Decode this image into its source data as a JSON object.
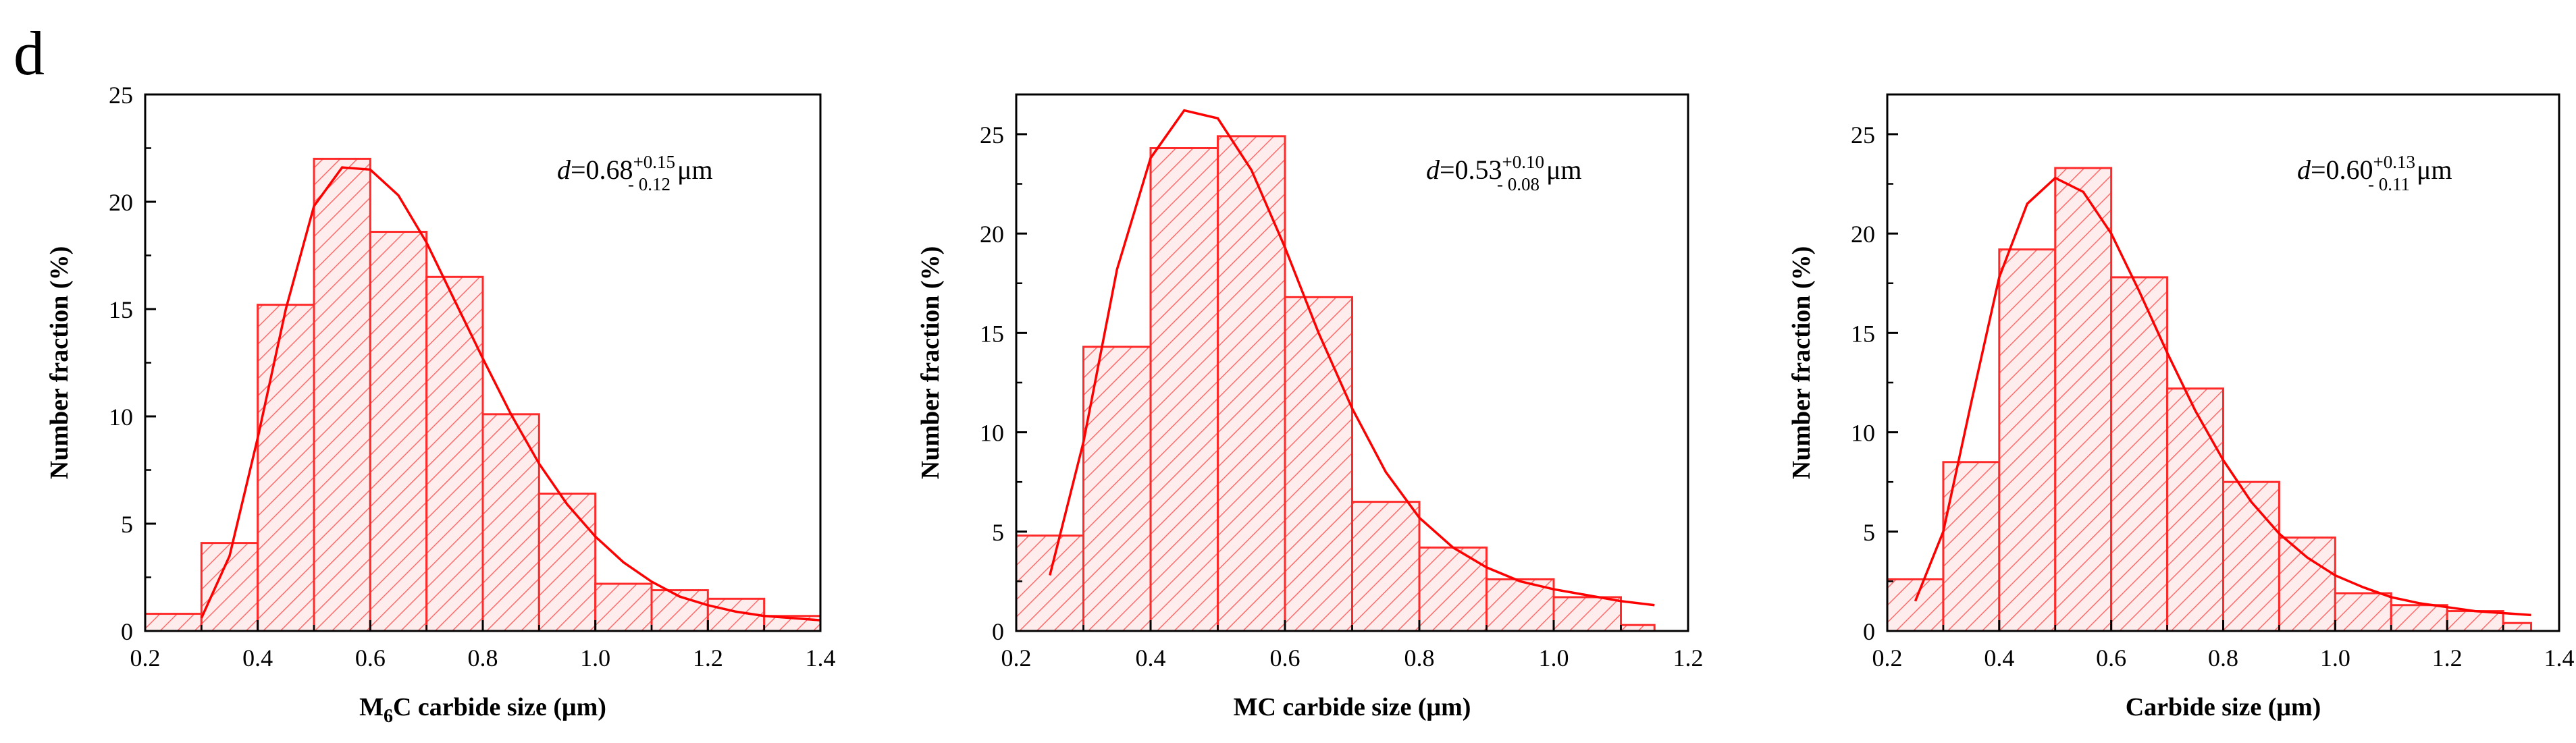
{
  "panel_label": "d",
  "colors": {
    "bar_stroke": "#ff2a2a",
    "fit_line": "#ff0000",
    "hatch": "#ff6b6b",
    "axis": "#000000"
  },
  "chart_data": [
    {
      "type": "bar",
      "title": "",
      "xlabel_main": "M",
      "xlabel_sub": "6",
      "xlabel_rest": "C carbide size (μm)",
      "ylabel": "Number fraction (%)",
      "xlim": [
        0.2,
        1.4
      ],
      "ylim": [
        0,
        25
      ],
      "xticks": [
        "0.2",
        "0.4",
        "0.6",
        "0.8",
        "1.0",
        "1.2",
        "1.4"
      ],
      "xtick_values": [
        0.2,
        0.4,
        0.6,
        0.8,
        1.0,
        1.2,
        1.4
      ],
      "yticks": [
        "0",
        "5",
        "10",
        "15",
        "20",
        "25"
      ],
      "ytick_values": [
        0,
        5,
        10,
        15,
        20,
        25
      ],
      "bin_edges": [
        0.2,
        0.3,
        0.4,
        0.5,
        0.6,
        0.7,
        0.8,
        0.9,
        1.0,
        1.1,
        1.2,
        1.3,
        1.4
      ],
      "values": [
        0.8,
        4.1,
        15.2,
        22.0,
        18.6,
        16.5,
        10.1,
        6.4,
        2.2,
        1.9,
        1.5,
        0.7
      ],
      "fit": {
        "x": [
          0.3,
          0.35,
          0.4,
          0.45,
          0.5,
          0.55,
          0.6,
          0.65,
          0.7,
          0.75,
          0.8,
          0.85,
          0.9,
          0.95,
          1.0,
          1.05,
          1.1,
          1.15,
          1.2,
          1.25,
          1.3,
          1.35,
          1.4
        ],
        "y": [
          0.6,
          3.5,
          9.0,
          15.0,
          19.8,
          21.6,
          21.5,
          20.3,
          18.1,
          15.4,
          12.7,
          10.1,
          7.8,
          5.9,
          4.4,
          3.2,
          2.3,
          1.6,
          1.2,
          0.9,
          0.7,
          0.6,
          0.5
        ]
      },
      "annotation": {
        "var": "d",
        "eq": "=0.68",
        "sup": "+0.15",
        "sub": "- 0.12",
        "unit": "μm"
      }
    },
    {
      "type": "bar",
      "title": "",
      "xlabel_main": "MC carbide size (μm)",
      "xlabel_sub": "",
      "xlabel_rest": "",
      "ylabel": "Number fraction (%)",
      "xlim": [
        0.2,
        1.2
      ],
      "ylim": [
        0,
        27
      ],
      "xticks": [
        "0.2",
        "0.4",
        "0.6",
        "0.8",
        "1.0",
        "1.2"
      ],
      "xtick_values": [
        0.2,
        0.4,
        0.6,
        0.8,
        1.0,
        1.2
      ],
      "yticks": [
        "0",
        "5",
        "10",
        "15",
        "20",
        "25"
      ],
      "ytick_values": [
        0,
        5,
        10,
        15,
        20,
        25
      ],
      "bin_edges": [
        0.2,
        0.3,
        0.4,
        0.5,
        0.6,
        0.7,
        0.8,
        0.9,
        1.0,
        1.1,
        1.15
      ],
      "values": [
        4.8,
        14.3,
        24.3,
        24.9,
        16.8,
        6.5,
        4.2,
        2.6,
        1.7,
        0.3
      ],
      "fit": {
        "x": [
          0.25,
          0.3,
          0.35,
          0.4,
          0.45,
          0.5,
          0.55,
          0.6,
          0.65,
          0.7,
          0.75,
          0.8,
          0.85,
          0.9,
          0.95,
          1.0,
          1.05,
          1.1,
          1.15
        ],
        "y": [
          2.8,
          9.5,
          18.2,
          23.8,
          26.2,
          25.8,
          23.2,
          19.3,
          15.0,
          11.2,
          8.0,
          5.7,
          4.2,
          3.2,
          2.5,
          2.1,
          1.8,
          1.5,
          1.3
        ]
      },
      "annotation": {
        "var": "d",
        "eq": "=0.53",
        "sup": "+0.10",
        "sub": "- 0.08",
        "unit": "μm"
      }
    },
    {
      "type": "bar",
      "title": "",
      "xlabel_main": "Carbide size (μm)",
      "xlabel_sub": "",
      "xlabel_rest": "",
      "ylabel": "Number fraction (%)",
      "xlim": [
        0.2,
        1.4
      ],
      "ylim": [
        0,
        27
      ],
      "xticks": [
        "0.2",
        "0.4",
        "0.6",
        "0.8",
        "1.0",
        "1.2",
        "1.4"
      ],
      "xtick_values": [
        0.2,
        0.4,
        0.6,
        0.8,
        1.0,
        1.2,
        1.4
      ],
      "yticks": [
        "0",
        "5",
        "10",
        "15",
        "20",
        "25"
      ],
      "ytick_values": [
        0,
        5,
        10,
        15,
        20,
        25
      ],
      "bin_edges": [
        0.2,
        0.3,
        0.4,
        0.5,
        0.6,
        0.7,
        0.8,
        0.9,
        1.0,
        1.1,
        1.2,
        1.3,
        1.35
      ],
      "values": [
        2.6,
        8.5,
        19.2,
        23.3,
        17.8,
        12.2,
        7.5,
        4.7,
        1.9,
        1.3,
        1.0,
        0.4
      ],
      "fit": {
        "x": [
          0.25,
          0.3,
          0.35,
          0.4,
          0.45,
          0.5,
          0.55,
          0.6,
          0.65,
          0.7,
          0.75,
          0.8,
          0.85,
          0.9,
          0.95,
          1.0,
          1.05,
          1.1,
          1.15,
          1.2,
          1.25,
          1.3,
          1.35
        ],
        "y": [
          1.5,
          5.0,
          11.5,
          17.8,
          21.5,
          22.8,
          22.1,
          20.0,
          17.1,
          14.0,
          11.1,
          8.6,
          6.5,
          4.9,
          3.7,
          2.8,
          2.2,
          1.7,
          1.4,
          1.2,
          1.0,
          0.9,
          0.8
        ]
      },
      "annotation": {
        "var": "d",
        "eq": "=0.60",
        "sup": "+0.13",
        "sub": "- 0.11",
        "unit": "μm"
      }
    }
  ]
}
